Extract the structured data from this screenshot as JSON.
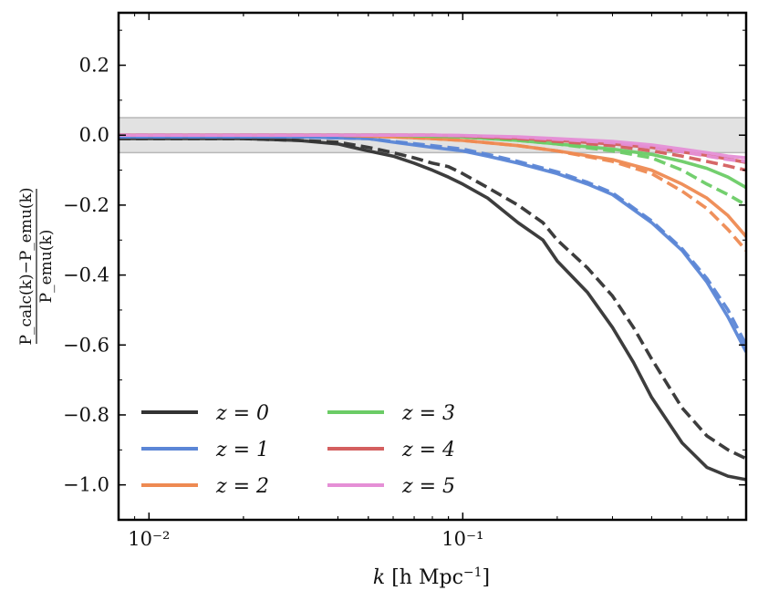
{
  "chart_data": {
    "type": "line",
    "xscale": "log",
    "xlim": [
      0.008,
      0.8
    ],
    "ylim": [
      -1.1,
      0.35
    ],
    "xlabel": "k [h Mpc⁻¹]",
    "ylabel": {
      "numerator": "P_calc(k)−P_emu(k)",
      "denominator": "P_emu(k)"
    },
    "xticks": [
      {
        "value": 0.01,
        "label": "10⁻²"
      },
      {
        "value": 0.1,
        "label": "10⁻¹"
      }
    ],
    "yticks": [
      {
        "value": 0.2,
        "label": "0.2"
      },
      {
        "value": 0.0,
        "label": "0.0"
      },
      {
        "value": -0.2,
        "label": "−0.2"
      },
      {
        "value": -0.4,
        "label": "−0.4"
      },
      {
        "value": -0.6,
        "label": "−0.6"
      },
      {
        "value": -0.8,
        "label": "−0.8"
      },
      {
        "value": -1.0,
        "label": "−1.0"
      }
    ],
    "band": {
      "ymin": -0.05,
      "ymax": 0.05,
      "color": "#e2e2e2",
      "edge": "#b8b8b8"
    },
    "legend_position": "lower-left",
    "series": [
      {
        "name": "z = 0",
        "color": "#333333",
        "x": [
          0.008,
          0.01,
          0.015,
          0.02,
          0.03,
          0.04,
          0.05,
          0.06,
          0.07,
          0.08,
          0.09,
          0.1,
          0.12,
          0.15,
          0.18,
          0.2,
          0.25,
          0.3,
          0.35,
          0.4,
          0.5,
          0.6,
          0.7,
          0.8
        ],
        "solid": [
          -0.01,
          -0.01,
          -0.01,
          -0.01,
          -0.015,
          -0.025,
          -0.045,
          -0.06,
          -0.08,
          -0.1,
          -0.12,
          -0.14,
          -0.18,
          -0.25,
          -0.3,
          -0.36,
          -0.45,
          -0.55,
          -0.65,
          -0.75,
          -0.88,
          -0.95,
          -0.975,
          -0.985
        ],
        "dashed": [
          -0.01,
          -0.01,
          -0.01,
          -0.01,
          -0.015,
          -0.02,
          -0.035,
          -0.05,
          -0.065,
          -0.08,
          -0.09,
          -0.11,
          -0.15,
          -0.2,
          -0.25,
          -0.3,
          -0.38,
          -0.46,
          -0.55,
          -0.64,
          -0.78,
          -0.86,
          -0.9,
          -0.925
        ]
      },
      {
        "name": "z = 1",
        "color": "#5b86d6",
        "x": [
          0.008,
          0.01,
          0.02,
          0.03,
          0.05,
          0.06,
          0.08,
          0.1,
          0.12,
          0.15,
          0.2,
          0.25,
          0.3,
          0.4,
          0.5,
          0.6,
          0.7,
          0.8
        ],
        "solid": [
          -0.005,
          -0.005,
          -0.005,
          -0.005,
          -0.01,
          -0.02,
          -0.035,
          -0.045,
          -0.06,
          -0.08,
          -0.11,
          -0.14,
          -0.17,
          -0.25,
          -0.33,
          -0.42,
          -0.52,
          -0.62
        ],
        "dashed": [
          -0.005,
          -0.005,
          -0.005,
          -0.005,
          -0.01,
          -0.018,
          -0.03,
          -0.04,
          -0.055,
          -0.075,
          -0.105,
          -0.135,
          -0.165,
          -0.245,
          -0.325,
          -0.41,
          -0.5,
          -0.6
        ]
      },
      {
        "name": "z = 2",
        "color": "#ee8a52",
        "x": [
          0.008,
          0.01,
          0.02,
          0.04,
          0.06,
          0.08,
          0.1,
          0.15,
          0.2,
          0.3,
          0.4,
          0.5,
          0.6,
          0.7,
          0.8
        ],
        "solid": [
          0.0,
          0.0,
          0.0,
          0.0,
          -0.005,
          -0.01,
          -0.015,
          -0.03,
          -0.045,
          -0.07,
          -0.1,
          -0.14,
          -0.18,
          -0.23,
          -0.29
        ],
        "dashed": [
          0.0,
          0.0,
          0.0,
          0.0,
          -0.005,
          -0.01,
          -0.015,
          -0.03,
          -0.045,
          -0.075,
          -0.11,
          -0.16,
          -0.21,
          -0.27,
          -0.33
        ]
      },
      {
        "name": "z = 3",
        "color": "#6bcc66",
        "x": [
          0.008,
          0.01,
          0.02,
          0.04,
          0.06,
          0.08,
          0.1,
          0.15,
          0.2,
          0.3,
          0.4,
          0.5,
          0.6,
          0.7,
          0.8
        ],
        "solid": [
          0.0,
          0.0,
          0.0,
          0.0,
          0.0,
          -0.003,
          -0.005,
          -0.015,
          -0.025,
          -0.04,
          -0.055,
          -0.075,
          -0.095,
          -0.12,
          -0.15
        ],
        "dashed": [
          0.0,
          0.0,
          0.0,
          0.0,
          0.0,
          -0.003,
          -0.005,
          -0.015,
          -0.025,
          -0.045,
          -0.065,
          -0.1,
          -0.14,
          -0.17,
          -0.2
        ]
      },
      {
        "name": "z = 4",
        "color": "#d45f5f",
        "x": [
          0.008,
          0.01,
          0.02,
          0.04,
          0.06,
          0.08,
          0.1,
          0.15,
          0.2,
          0.3,
          0.4,
          0.5,
          0.6,
          0.7,
          0.8
        ],
        "solid": [
          0.0,
          0.0,
          0.0,
          0.0,
          0.0,
          0.0,
          -0.002,
          -0.008,
          -0.015,
          -0.025,
          -0.035,
          -0.048,
          -0.058,
          -0.068,
          -0.078
        ],
        "dashed": [
          0.0,
          0.0,
          0.0,
          0.0,
          0.0,
          0.0,
          -0.002,
          -0.01,
          -0.018,
          -0.03,
          -0.045,
          -0.06,
          -0.075,
          -0.088,
          -0.1
        ]
      },
      {
        "name": "z = 5",
        "color": "#e58fd6",
        "x": [
          0.008,
          0.01,
          0.02,
          0.04,
          0.06,
          0.08,
          0.1,
          0.15,
          0.2,
          0.3,
          0.4,
          0.5,
          0.6,
          0.7,
          0.8
        ],
        "solid": [
          0.0,
          0.0,
          0.0,
          0.0,
          0.0,
          0.0,
          -0.001,
          -0.005,
          -0.01,
          -0.018,
          -0.028,
          -0.04,
          -0.05,
          -0.06,
          -0.065
        ],
        "dashed": [
          0.0,
          0.0,
          0.0,
          0.0,
          0.0,
          0.0,
          -0.001,
          -0.006,
          -0.012,
          -0.022,
          -0.035,
          -0.048,
          -0.06,
          -0.07,
          -0.075
        ]
      }
    ],
    "legend_labels": [
      "z = 0",
      "z = 1",
      "z = 2",
      "z = 3",
      "z = 4",
      "z = 5"
    ]
  }
}
